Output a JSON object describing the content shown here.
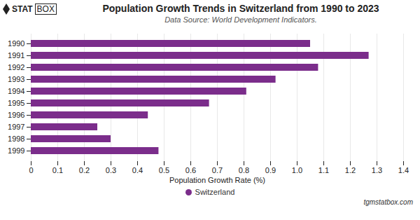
{
  "chart_data": {
    "type": "bar",
    "orientation": "horizontal",
    "title": "Population Growth Trends in Switzerland from 1990 to 2023",
    "subtitle": "Data Source: World Development Indicators.",
    "x_label": "Population Growth Rate (%)",
    "categories": [
      "1990",
      "1991",
      "1992",
      "1993",
      "1994",
      "1995",
      "1996",
      "1997",
      "1998",
      "1999"
    ],
    "series": [
      {
        "name": "Switzerland",
        "color": "#7B2D8B",
        "values": [
          1.05,
          1.27,
          1.08,
          0.92,
          0.81,
          0.67,
          0.44,
          0.25,
          0.3,
          0.48
        ]
      }
    ],
    "xlim": [
      0,
      1.4
    ],
    "xticks": [
      0,
      0.1,
      0.2,
      0.3,
      0.4,
      0.5,
      0.6,
      0.7,
      0.8,
      0.9,
      {
        "value": 1,
        "label": "1.0"
      },
      1.1,
      1.2,
      1.3,
      1.4
    ],
    "grid": true,
    "legend": "bottom",
    "annotations": [
      "STAT",
      "BOX",
      "tgmstatbox.com"
    ]
  }
}
